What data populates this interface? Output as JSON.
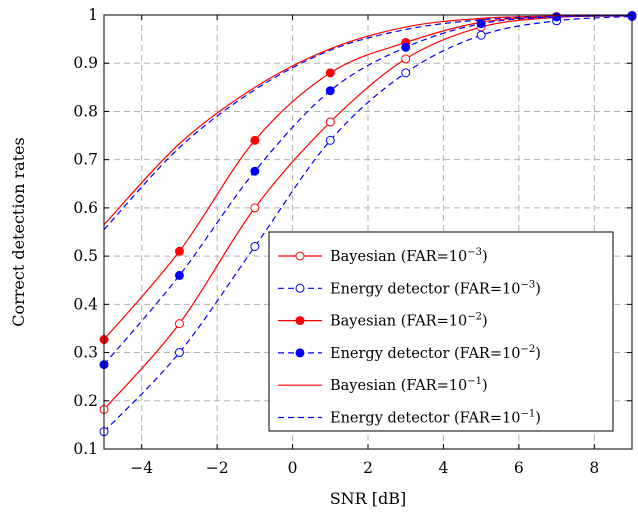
{
  "chart_data": {
    "type": "line",
    "title": "",
    "xlabel": "SNR [dB]",
    "ylabel": "Correct detection rates",
    "xlim": [
      -5,
      9
    ],
    "ylim": [
      0.1,
      1.0
    ],
    "grid": true,
    "legend_position": "bottom-right",
    "x_ticks": [
      -4,
      -2,
      0,
      2,
      4,
      6,
      8
    ],
    "x_tick_labels": [
      "−4",
      "−2",
      "0",
      "2",
      "4",
      "6",
      "8"
    ],
    "y_ticks": [
      0.1,
      0.2,
      0.3,
      0.4,
      0.5,
      0.6,
      0.7,
      0.8,
      0.9,
      1.0
    ],
    "y_tick_labels": [
      "0.1",
      "0.2",
      "0.3",
      "0.4",
      "0.5",
      "0.6",
      "0.7",
      "0.8",
      "0.9",
      "1"
    ],
    "series": [
      {
        "name": "Bayesian (FAR=10^-3)",
        "label_main": "Bayesian (FAR=10",
        "label_exp": "−3",
        "label_end": ")",
        "color": "#ff0000",
        "style": "solid",
        "marker": "open-circle",
        "x": [
          -5,
          -3,
          -1,
          1,
          3,
          5,
          7,
          9
        ],
        "y": [
          0.182,
          0.36,
          0.6,
          0.778,
          0.909,
          0.975,
          0.995,
          0.998
        ]
      },
      {
        "name": "Energy detector (FAR=10^-3)",
        "label_main": "Energy detector (FAR=10",
        "label_exp": "−3",
        "label_end": ")",
        "color": "#0000ff",
        "style": "dashed",
        "marker": "open-circle",
        "x": [
          -5,
          -3,
          -1,
          1,
          3,
          5,
          7,
          9
        ],
        "y": [
          0.136,
          0.3,
          0.52,
          0.74,
          0.88,
          0.958,
          0.988,
          0.997
        ]
      },
      {
        "name": "Bayesian (FAR=10^-2)",
        "label_main": "Bayesian (FAR=10",
        "label_exp": "−2",
        "label_end": ")",
        "color": "#ff0000",
        "style": "solid",
        "marker": "filled-circle",
        "x": [
          -5,
          -3,
          -1,
          1,
          3,
          5,
          7,
          9
        ],
        "y": [
          0.327,
          0.51,
          0.74,
          0.88,
          0.943,
          0.985,
          0.997,
          0.999
        ]
      },
      {
        "name": "Energy detector (FAR=10^-2)",
        "label_main": "Energy detector (FAR=10",
        "label_exp": "−2",
        "label_end": ")",
        "color": "#0000ff",
        "style": "dashed",
        "marker": "filled-circle",
        "x": [
          -5,
          -3,
          -1,
          1,
          3,
          5,
          7,
          9
        ],
        "y": [
          0.275,
          0.46,
          0.676,
          0.843,
          0.933,
          0.982,
          0.996,
          0.999
        ]
      },
      {
        "name": "Bayesian (FAR=10^-1)",
        "label_main": "Bayesian (FAR=10",
        "label_exp": "−1",
        "label_end": ")",
        "color": "#ff0000",
        "style": "solid",
        "marker": "none",
        "x": [
          -5,
          -3,
          -1,
          1,
          3,
          5,
          7,
          9
        ],
        "y": [
          0.565,
          0.733,
          0.85,
          0.93,
          0.975,
          0.993,
          0.998,
          1.0
        ]
      },
      {
        "name": "Energy detector (FAR=10^-1)",
        "label_main": "Energy detector (FAR=10",
        "label_exp": "−1",
        "label_end": ")",
        "color": "#0000ff",
        "style": "dashed",
        "marker": "none",
        "x": [
          -5,
          -3,
          -1,
          1,
          3,
          5,
          7,
          9
        ],
        "y": [
          0.555,
          0.725,
          0.845,
          0.927,
          0.97,
          0.99,
          0.997,
          0.999
        ]
      }
    ]
  }
}
